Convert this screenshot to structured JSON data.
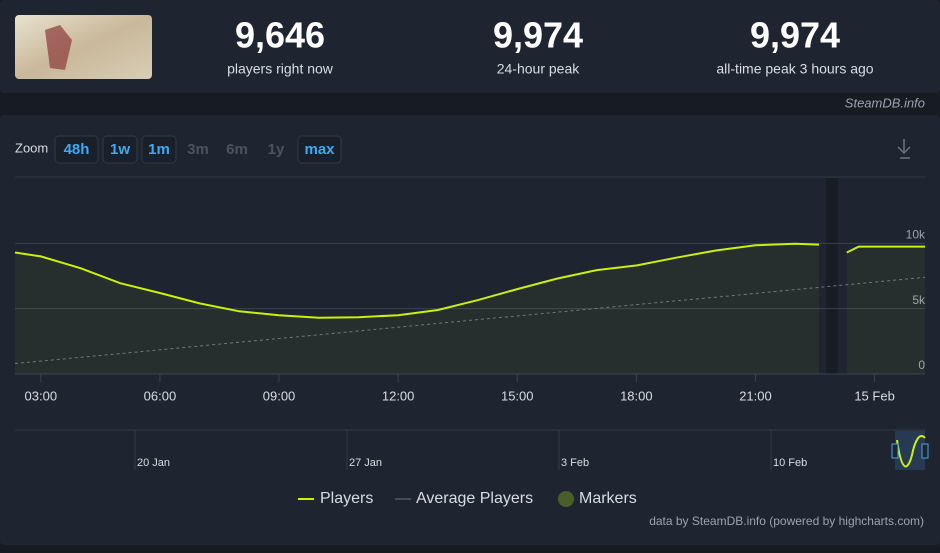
{
  "stats": [
    {
      "value": "9,646",
      "label": "players right now"
    },
    {
      "value": "9,974",
      "label": "24-hour peak"
    },
    {
      "value": "9,974",
      "label": "all-time peak 3 hours ago"
    }
  ],
  "source": "SteamDB.info",
  "zoom": {
    "label": "Zoom",
    "buttons": [
      {
        "text": "48h",
        "enabled": true
      },
      {
        "text": "1w",
        "enabled": true
      },
      {
        "text": "1m",
        "enabled": true
      },
      {
        "text": "3m",
        "enabled": false
      },
      {
        "text": "6m",
        "enabled": false
      },
      {
        "text": "1y",
        "enabled": false
      },
      {
        "text": "max",
        "enabled": true
      }
    ]
  },
  "navigator_labels": [
    "20 Jan",
    "27 Jan",
    "3 Feb",
    "10 Feb"
  ],
  "credits": "data by SteamDB.info (powered by highcharts.com)",
  "chart_data": {
    "type": "line",
    "x": [
      2.35,
      3,
      4,
      5,
      6,
      7,
      8,
      9,
      10,
      11,
      12,
      13,
      14,
      15,
      16,
      17,
      18,
      19,
      20,
      21,
      22,
      22.6,
      23,
      23.3,
      23.6,
      24.6,
      25.27
    ],
    "xlim": [
      2.35,
      25.27
    ],
    "xticks": [
      {
        "value": 3,
        "label": "03:00"
      },
      {
        "value": 6,
        "label": "06:00"
      },
      {
        "value": 9,
        "label": "09:00"
      },
      {
        "value": 12,
        "label": "12:00"
      },
      {
        "value": 15,
        "label": "15:00"
      },
      {
        "value": 18,
        "label": "18:00"
      },
      {
        "value": 21,
        "label": "21:00"
      },
      {
        "value": 24,
        "label": "15 Feb"
      }
    ],
    "ylim": [
      0,
      15000
    ],
    "yticks": [
      0,
      {
        "value": 5000,
        "label": "5k"
      },
      {
        "value": 10000,
        "label": "10k"
      }
    ],
    "grid": true,
    "series": [
      {
        "name": "Players",
        "color": "#c6f20c",
        "values": [
          9300,
          9000,
          8100,
          6950,
          6200,
          5400,
          4800,
          4500,
          4300,
          4350,
          4500,
          4900,
          5650,
          6500,
          7300,
          7950,
          8300,
          8900,
          9450,
          9850,
          9970,
          9900,
          null,
          9300,
          9750,
          9750,
          9750
        ]
      },
      {
        "name": "Average Players",
        "color": "#6b7280",
        "values": [
          800,
          990,
          1280,
          1560,
          1850,
          2140,
          2430,
          2720,
          3000,
          3290,
          3580,
          3870,
          4160,
          4440,
          4730,
          5020,
          5310,
          5600,
          5880,
          6170,
          6460,
          6630,
          6750,
          6830,
          6920,
          7210,
          7400
        ]
      }
    ],
    "markers_legend": {
      "name": "Markers",
      "color": "#4a5e2a"
    }
  }
}
